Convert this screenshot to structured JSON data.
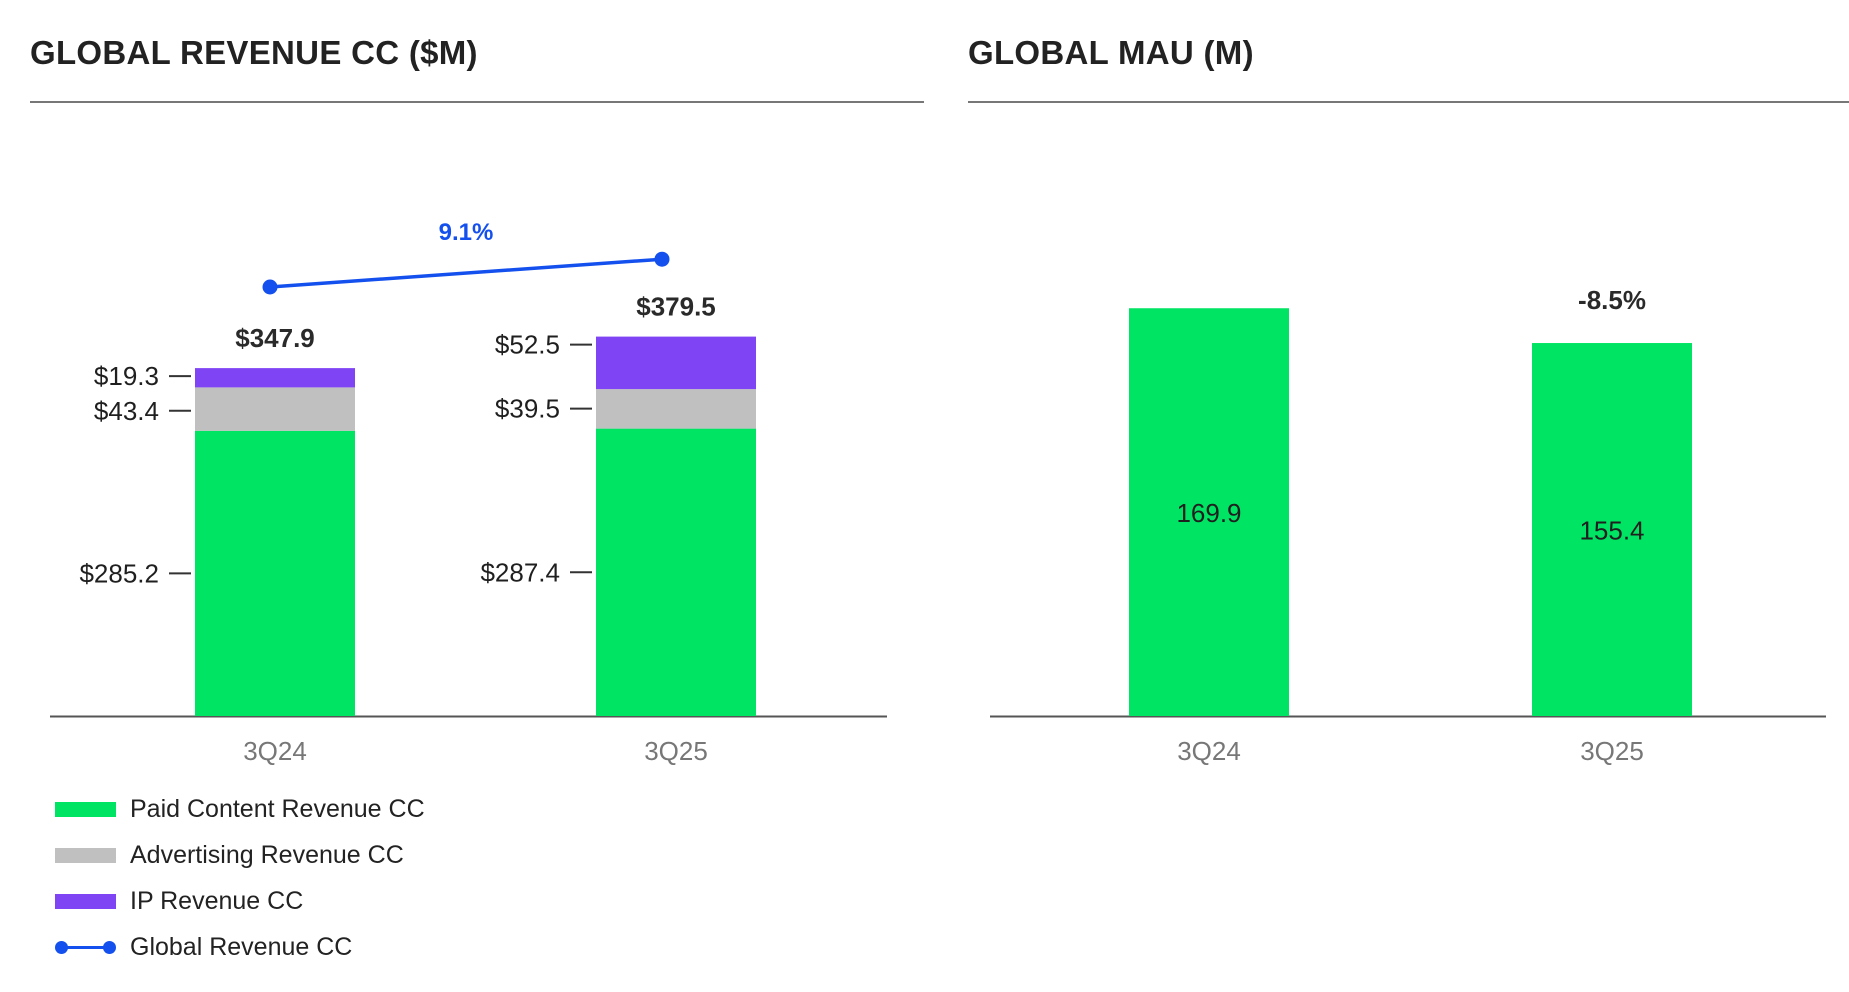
{
  "colors": {
    "paid": "#00e463",
    "advertising": "#c0c0c0",
    "ip": "#7f45f5",
    "global_line": "#1450ee",
    "axis": "#555555",
    "tick_label": "#777777",
    "text": "#1f1f1f"
  },
  "revenue_panel": {
    "title": "GLOBAL REVENUE CC ($M)",
    "growth_label": "9.1%"
  },
  "mau_panel": {
    "title": "GLOBAL MAU (M)",
    "change_label": "-8.5%"
  },
  "legend": [
    {
      "label": "Paid Content Revenue CC",
      "color": "#00e463",
      "kind": "swatch"
    },
    {
      "label": "Advertising Revenue CC",
      "color": "#c0c0c0",
      "kind": "swatch"
    },
    {
      "label": "IP Revenue CC",
      "color": "#7f45f5",
      "kind": "swatch"
    },
    {
      "label": "Global Revenue CC",
      "color": "#1450ee",
      "kind": "line"
    }
  ],
  "chart_data": [
    {
      "type": "bar",
      "stacked": true,
      "title": "GLOBAL REVENUE CC ($M)",
      "categories": [
        "3Q24",
        "3Q25"
      ],
      "series": [
        {
          "name": "Paid Content Revenue CC",
          "values": [
            285.2,
            287.4
          ],
          "labels": [
            "$285.2",
            "$287.4"
          ],
          "color": "#00e463"
        },
        {
          "name": "Advertising Revenue CC",
          "values": [
            43.4,
            39.5
          ],
          "labels": [
            "$43.4",
            "$39.5"
          ],
          "color": "#c0c0c0"
        },
        {
          "name": "IP Revenue CC",
          "values": [
            19.3,
            52.5
          ],
          "labels": [
            "$19.3",
            "$52.5"
          ],
          "color": "#7f45f5"
        }
      ],
      "line_series": {
        "name": "Global Revenue CC",
        "values": [
          347.9,
          379.5
        ],
        "labels": [
          "$347.9",
          "$379.5"
        ],
        "color": "#1450ee"
      },
      "annotations": [
        "9.1%"
      ],
      "ylim": [
        0,
        410
      ],
      "legend": "bottom-left",
      "grid": false
    },
    {
      "type": "bar",
      "title": "GLOBAL MAU (M)",
      "categories": [
        "3Q24",
        "3Q25"
      ],
      "values": [
        169.9,
        155.4
      ],
      "labels": [
        "169.9",
        "155.4"
      ],
      "color": "#00e463",
      "annotations": [
        "-8.5%"
      ],
      "ylim": [
        0,
        205
      ],
      "grid": false
    }
  ]
}
